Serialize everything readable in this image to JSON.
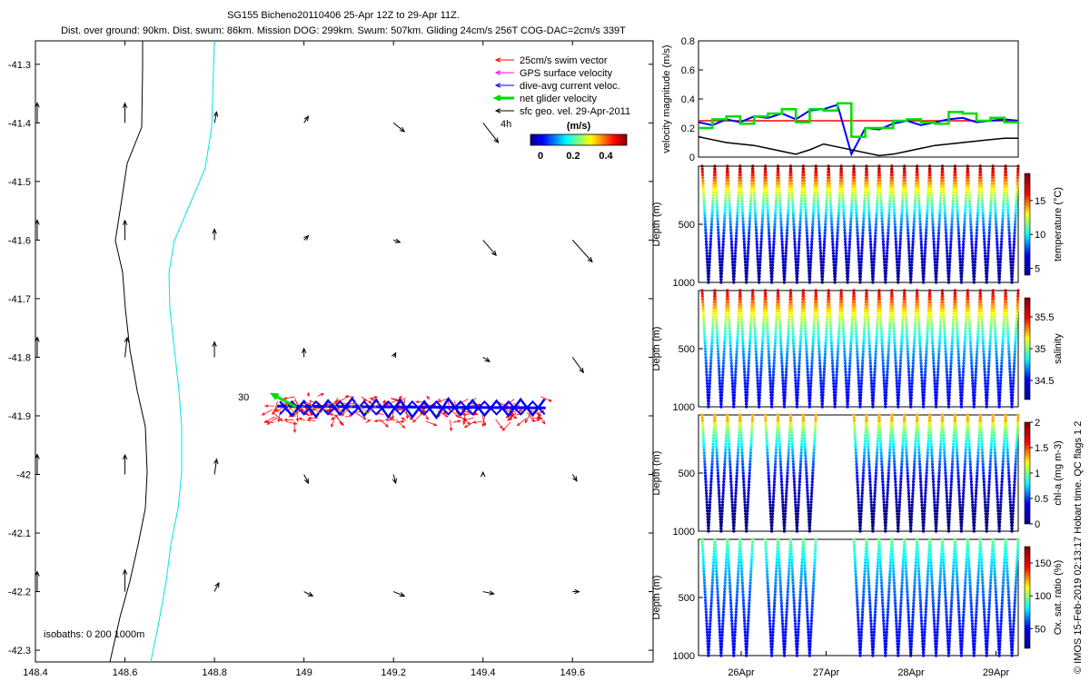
{
  "header": {
    "title": "SG155 Bicheno20110406 25-Apr 12Z to 29-Apr 11Z.",
    "subtitle": "Dist. over ground: 90km. Dist. swum: 86km. Mission DOG: 299km. Swum: 507km. Gliding 24cm/s 256T COG-DAC=2cm/s 339T"
  },
  "credit": "© IMOS 15-Feb-2019 02:13:17 Hobart time. QC flags 1  2",
  "map": {
    "legend": [
      {
        "label": "25cm/s swim vector",
        "color": "#ff0000"
      },
      {
        "label": "GPS surface velocity",
        "color": "#ff00ff"
      },
      {
        "label": "dive-avg current veloc.",
        "color": "#0000ff"
      },
      {
        "label": "net glider velocity",
        "color": "#00dd00"
      },
      {
        "label": "sfc geo. vel. 29-Apr-2011",
        "color": "#000000"
      }
    ],
    "colorbar_title": "(m/s)",
    "colorbar_ticks": [
      "0",
      "0.2",
      "0.4"
    ],
    "label_4h": "4h",
    "label_30": "30",
    "isobaths_label": "isobaths: 0   200  1000m",
    "coastline_color": "#000000",
    "isobath_200_color": "#00e5e5"
  },
  "chart_data": [
    {
      "type": "scatter",
      "title": "",
      "xlabel": "",
      "ylabel": "",
      "xlim": [
        148.4,
        149.78
      ],
      "ylim": [
        -42.32,
        -41.26
      ],
      "x_ticks": [
        "148.4",
        "148.6",
        "148.8",
        "149",
        "149.2",
        "149.4",
        "149.6"
      ],
      "y_ticks": [
        "-41.3",
        "-41.4",
        "-41.5",
        "-41.6",
        "-41.7",
        "-41.8",
        "-41.9",
        "-42",
        "-42.1",
        "-42.2",
        "-42.3"
      ],
      "track": {
        "lon_range": [
          148.93,
          149.55
        ],
        "lat_center": -41.885
      },
      "geo_vectors": {
        "lons": [
          148.6,
          148.8,
          149.0,
          149.2,
          149.4,
          149.6
        ],
        "lats": [
          -41.4,
          -41.6,
          -41.8,
          -42.0,
          -42.2
        ],
        "u_ms": [
          [
            0.0,
            0.01,
            0.02,
            0.05,
            0.07,
            0.0
          ],
          [
            0.0,
            0.0,
            0.02,
            0.03,
            0.06,
            0.09
          ],
          [
            0.01,
            0.0,
            0.0,
            0.01,
            0.03,
            0.05
          ],
          [
            0.0,
            0.01,
            0.02,
            0.01,
            0.0,
            0.02
          ],
          [
            0.0,
            0.02,
            0.04,
            0.05,
            0.05,
            0.03
          ]
        ],
        "v_ms": [
          [
            0.09,
            0.05,
            0.03,
            -0.04,
            -0.09,
            0.0
          ],
          [
            0.09,
            0.05,
            0.02,
            -0.01,
            -0.07,
            -0.1
          ],
          [
            0.09,
            0.07,
            0.04,
            0.02,
            -0.02,
            -0.07
          ],
          [
            0.09,
            0.07,
            -0.04,
            -0.04,
            0.01,
            -0.03
          ],
          [
            0.1,
            0.04,
            -0.02,
            -0.02,
            -0.01,
            0.0
          ]
        ]
      }
    },
    {
      "type": "line",
      "title": "",
      "xlabel": "",
      "ylabel": "velocity magnitude (m/s)",
      "ylim": [
        0,
        0.8
      ],
      "y_ticks": [
        "0",
        "0.2",
        "0.4",
        "0.6",
        "0.8"
      ],
      "series": [
        {
          "color": "#ff0000",
          "values": [
            0.25,
            0.25,
            0.25,
            0.25,
            0.25,
            0.25,
            0.25,
            0.25,
            0.25,
            0.25,
            0.25,
            0.25,
            0.25,
            0.25,
            0.25,
            0.25,
            0.25,
            0.25,
            0.25,
            0.25,
            0.25,
            0.25,
            0.25,
            0.25
          ]
        },
        {
          "color": "#0000ff",
          "values": [
            0.24,
            0.22,
            0.26,
            0.24,
            0.28,
            0.27,
            0.3,
            0.26,
            0.32,
            0.33,
            0.36,
            0.02,
            0.2,
            0.19,
            0.23,
            0.25,
            0.22,
            0.24,
            0.26,
            0.27,
            0.24,
            0.25,
            0.26,
            0.25
          ]
        },
        {
          "color": "#00dd00",
          "values": [
            0.2,
            0.26,
            0.28,
            0.23,
            0.28,
            0.3,
            0.33,
            0.24,
            0.33,
            0.32,
            0.37,
            0.14,
            0.2,
            0.2,
            0.25,
            0.26,
            0.24,
            0.23,
            0.31,
            0.3,
            0.25,
            0.27,
            0.24,
            0.23
          ]
        },
        {
          "color": "#000000",
          "values": [
            0.14,
            0.12,
            0.1,
            0.09,
            0.08,
            0.06,
            0.04,
            0.02,
            0.05,
            0.09,
            0.07,
            0.05,
            0.03,
            0.01,
            0.02,
            0.04,
            0.06,
            0.08,
            0.09,
            0.1,
            0.11,
            0.12,
            0.13,
            0.13
          ]
        }
      ]
    },
    {
      "type": "scatter",
      "ylabel": "Depth (m)",
      "cbar_label": "temperature (°C)",
      "ylim": [
        1000,
        0
      ],
      "y_ticks": [
        "500",
        "1000"
      ],
      "cbar_ticks": [
        "5",
        "10",
        "15"
      ],
      "cbar_range": [
        4,
        19
      ],
      "profile": {
        "n_dives": 25,
        "surface_value": 19,
        "bottom_value": 4.5,
        "x_range_days": [
          "25-Apr",
          "29-Apr"
        ]
      }
    },
    {
      "type": "scatter",
      "ylabel": "Depth (m)",
      "cbar_label": "salinity",
      "ylim": [
        1000,
        0
      ],
      "y_ticks": [
        "500",
        "1000"
      ],
      "cbar_ticks": [
        "34.5",
        "35",
        "35.5"
      ],
      "cbar_range": [
        34.2,
        35.8
      ],
      "profile": {
        "n_dives": 25,
        "surface_value": 35.7,
        "bottom_value": 34.4
      }
    },
    {
      "type": "scatter",
      "ylabel": "Depth (m)",
      "cbar_label": "chl-a (mg m-3)",
      "ylim": [
        1000,
        0
      ],
      "y_ticks": [
        "500",
        "1000"
      ],
      "cbar_ticks": [
        "0",
        "0.5",
        "1",
        "1.5",
        "2"
      ],
      "cbar_range": [
        0,
        2
      ],
      "profile": {
        "n_dives": 25,
        "surface_value": 1.4,
        "bottom_value": 0
      }
    },
    {
      "type": "scatter",
      "ylabel": "Depth (m)",
      "cbar_label": "Ox. sat. ratio (%)",
      "ylim": [
        1000,
        0
      ],
      "y_ticks": [
        "500",
        "1000"
      ],
      "x_ticks": [
        "26Apr",
        "27Apr",
        "28Apr",
        "29Apr"
      ],
      "cbar_ticks": [
        "50",
        "100",
        "150"
      ],
      "cbar_range": [
        20,
        175
      ],
      "profile": {
        "n_dives": 25,
        "surface_value": 95,
        "bottom_value": 40
      }
    }
  ]
}
